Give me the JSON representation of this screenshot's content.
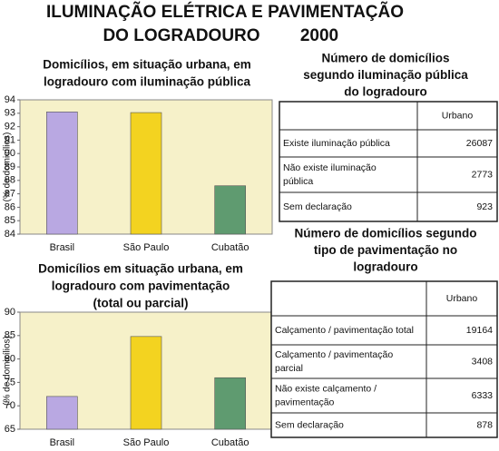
{
  "title": [
    "ILUMINAÇÃO ELÉTRICA E PAVIMENTAÇÃO",
    "DO LOGRADOURO",
    "2000"
  ],
  "chart_data": [
    {
      "type": "bar",
      "title": [
        "Domicílios, em situação urbana, em",
        "logradouro com iluminação pública"
      ],
      "ylabel": "(% de domicílios)",
      "categories": [
        "Brasil",
        "São Paulo",
        "Cubatão"
      ],
      "values": [
        93.1,
        93.05,
        87.6
      ],
      "colors": [
        "#b9a8e2",
        "#f3d320",
        "#5f9b70"
      ],
      "ylim": [
        84,
        94
      ],
      "yticks": [
        84,
        85,
        86,
        87,
        88,
        89,
        90,
        91,
        92,
        93,
        94
      ]
    },
    {
      "type": "bar",
      "title": [
        "Domicílios  em situação urbana, em",
        "logradouro com pavimentação",
        "(total ou parcial)"
      ],
      "ylabel": "(% de domicílios)",
      "categories": [
        "Brasil",
        "São Paulo",
        "Cubatão"
      ],
      "values": [
        72,
        84.8,
        76
      ],
      "colors": [
        "#b9a8e2",
        "#f3d320",
        "#5f9b70"
      ],
      "ylim": [
        65,
        90
      ],
      "yticks": [
        65,
        70,
        75,
        80,
        85,
        90
      ]
    }
  ],
  "tables": [
    {
      "title": [
        "Número de domicílios",
        "segundo iluminação pública",
        "do logradouro"
      ],
      "header": "Urbano",
      "rows": [
        {
          "label": [
            "Existe iluminação pública"
          ],
          "value": 26087
        },
        {
          "label": [
            "Não existe iluminação",
            "pública"
          ],
          "value": 2773
        },
        {
          "label": [
            "Sem declaração"
          ],
          "value": 923
        }
      ]
    },
    {
      "title": [
        "Número de domicílios segundo",
        "tipo de pavimentação no",
        "logradouro"
      ],
      "header": "Urbano",
      "rows": [
        {
          "label": [
            "Calçamento / pavimentação total"
          ],
          "value": 19164
        },
        {
          "label": [
            "Calçamento / pavimentação",
            "parcial"
          ],
          "value": 3408
        },
        {
          "label": [
            "Não existe calçamento /",
            "pavimentação"
          ],
          "value": 6333
        },
        {
          "label": [
            "Sem declaração"
          ],
          "value": 878
        }
      ]
    }
  ]
}
